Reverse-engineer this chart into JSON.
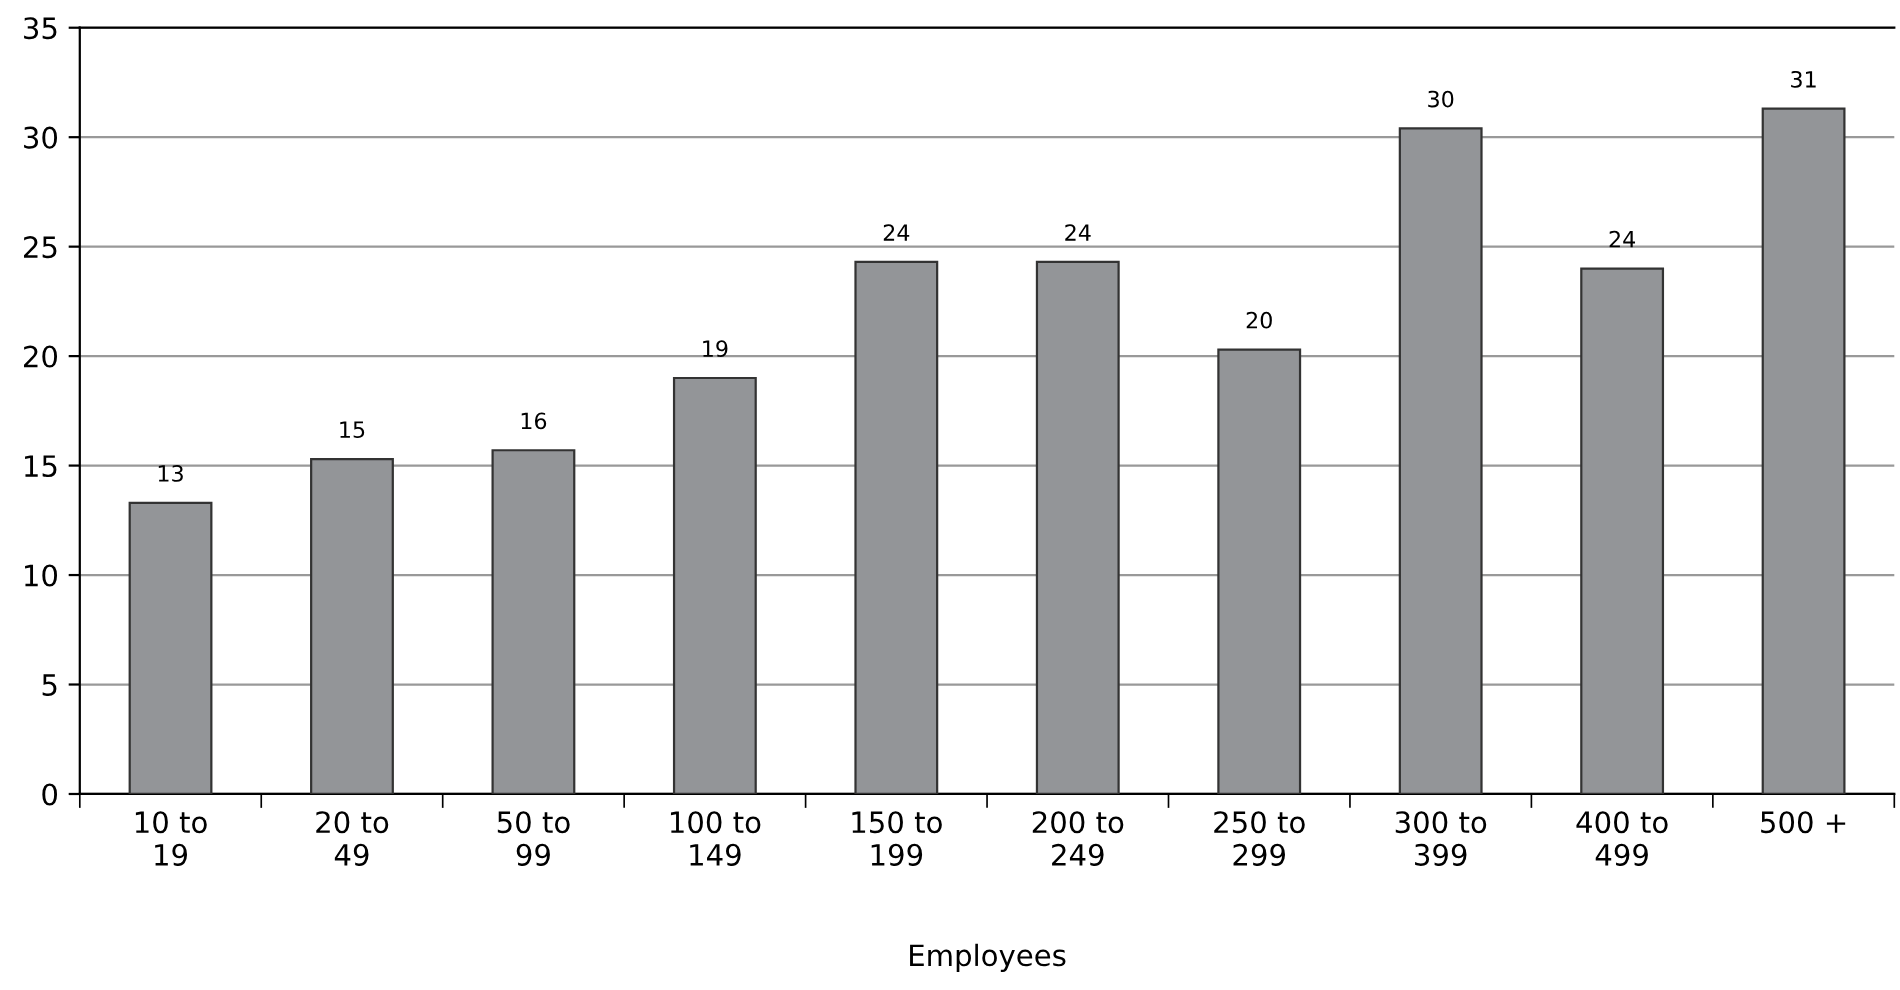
{
  "chart_data": {
    "type": "bar",
    "xlabel": "Employees",
    "categories": [
      "10 to\n19",
      "20 to\n49",
      "50 to\n99",
      "100 to\n149",
      "150 to\n199",
      "200 to\n249",
      "250 to\n299",
      "300 to\n399",
      "400 to\n499",
      "500 +"
    ],
    "values": [
      13.3,
      15.3,
      15.7,
      19.0,
      24.3,
      24.3,
      20.3,
      30.4,
      24.0,
      31.3
    ],
    "value_labels": [
      "13",
      "15",
      "16",
      "19",
      "24",
      "24",
      "20",
      "30",
      "24",
      "31"
    ],
    "color": "#939598",
    "ylim": [
      0,
      35
    ],
    "yticks": [
      0,
      5,
      10,
      15,
      20,
      25,
      30,
      35
    ],
    "grid": "y",
    "legend": false
  }
}
